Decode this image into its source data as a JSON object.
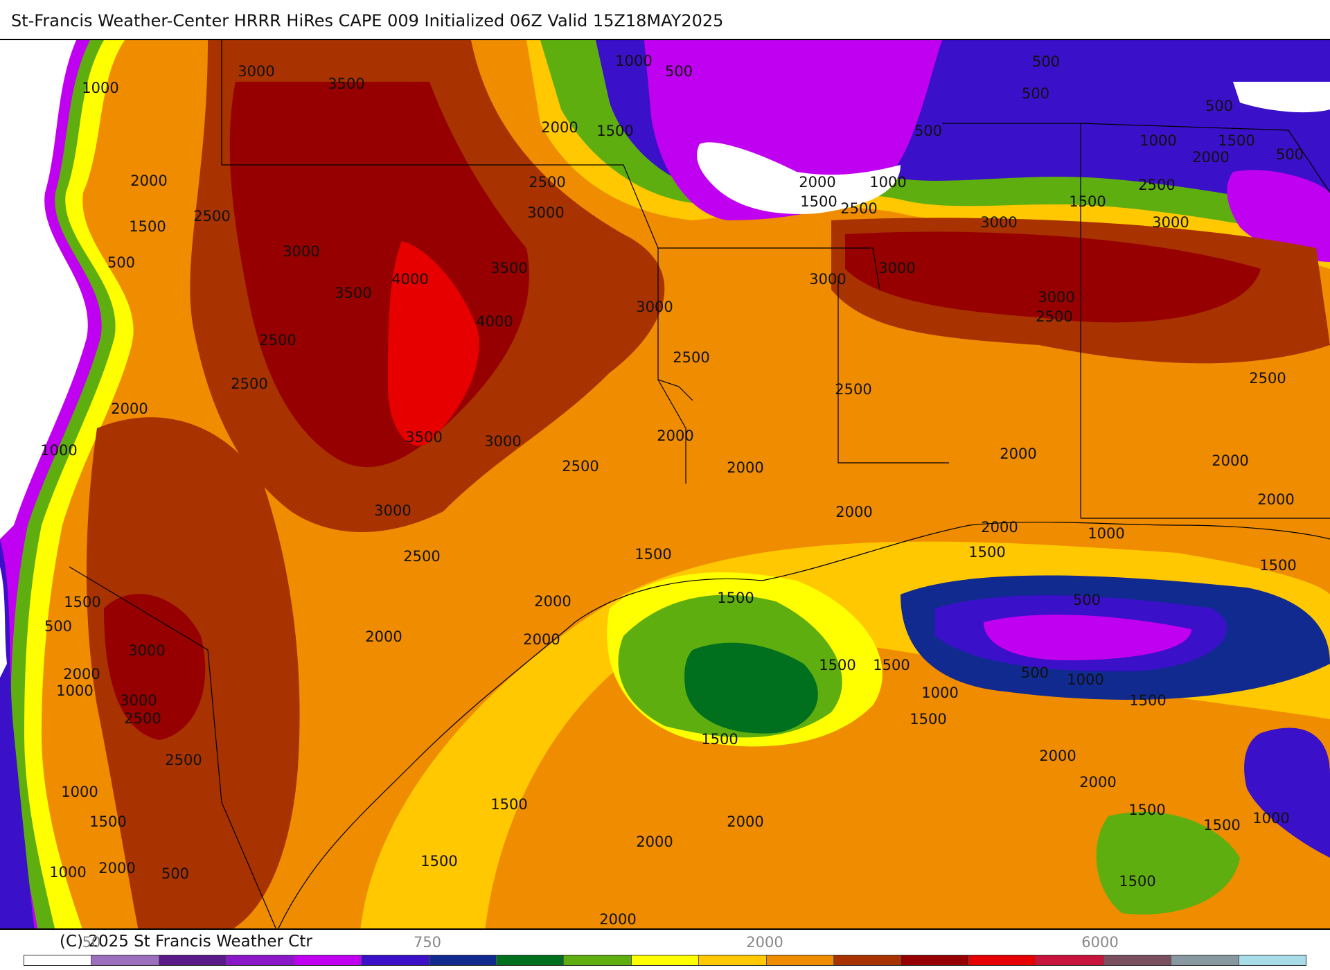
{
  "header": {
    "title": "St-Francis Weather-Center HRRR HiRes CAPE  009 Initialized  06Z Valid 15Z18MAY2025"
  },
  "footer": {
    "copyright": "(C) 2025 St Francis Weather Ctr",
    "colorbar_ticks": [
      "50",
      "750",
      "2000",
      "6000"
    ]
  },
  "colors": {
    "white": "#ffffff",
    "lavender": "#9c6fbf",
    "dark_purple": "#5a1a8a",
    "purple": "#8a17c8",
    "magenta": "#c000f0",
    "blue_violet": "#3a10c8",
    "navy": "#102a90",
    "dark_green": "#00701e",
    "green": "#5fae10",
    "yellow": "#ffff00",
    "gold": "#ffc800",
    "orange": "#f08c00",
    "brown": "#a83200",
    "dark_red": "#960000",
    "red": "#e60000",
    "crimson": "#c8143c",
    "mauve": "#7a5060",
    "gray": "#8898a0",
    "light_cyan": "#a8dce6"
  },
  "colorbar": [
    "#ffffff",
    "#9c6fbf",
    "#5a1a8a",
    "#8a17c8",
    "#c000f0",
    "#3a10c8",
    "#102a90",
    "#00701e",
    "#5fae10",
    "#ffff00",
    "#ffc800",
    "#f08c00",
    "#a83200",
    "#960000",
    "#e60000",
    "#c8143c",
    "#7a5060",
    "#8898a0",
    "#a8dce6"
  ],
  "contour_labels": [
    "500",
    "1000",
    "1500",
    "2000",
    "2500",
    "3000",
    "3500",
    "4000"
  ]
}
